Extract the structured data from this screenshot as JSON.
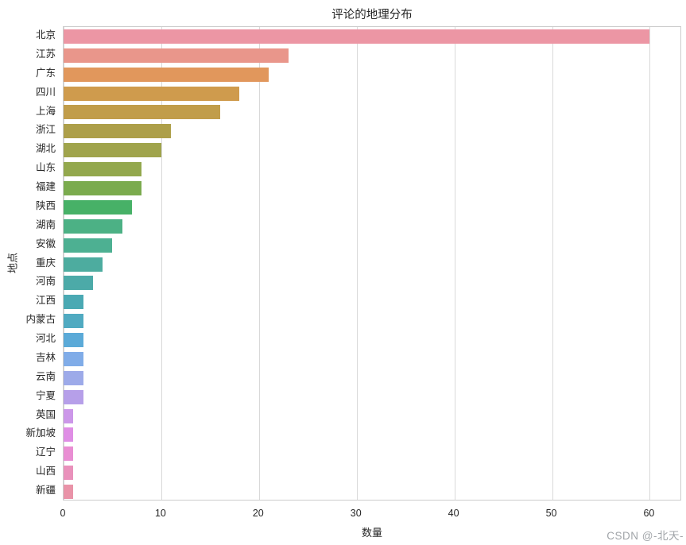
{
  "watermark": "CSDN @-北天-",
  "colors": {
    "background": "#ffffff",
    "grid": "#d9d9d9",
    "spine": "#cccccc",
    "text": "#262626",
    "watermark": "#a0a4a8"
  },
  "chart_data": {
    "type": "bar",
    "orientation": "horizontal",
    "title": "评论的地理分布",
    "xlabel": "数量",
    "ylabel": "地点",
    "xlim": [
      0,
      63.3
    ],
    "x_ticks": [
      0,
      10,
      20,
      30,
      40,
      50,
      60
    ],
    "grid": "vertical",
    "legend_position": "none",
    "categories": [
      "北京",
      "江苏",
      "广东",
      "四川",
      "上海",
      "浙江",
      "湖北",
      "山东",
      "福建",
      "陕西",
      "湖南",
      "安徽",
      "重庆",
      "河南",
      "江西",
      "内蒙古",
      "河北",
      "吉林",
      "云南",
      "宁夏",
      "英国",
      "新加坡",
      "辽宁",
      "山西",
      "新疆"
    ],
    "values": [
      60,
      23,
      21,
      18,
      16,
      11,
      10,
      8,
      8,
      7,
      6,
      5,
      4,
      3,
      2,
      2,
      2,
      2,
      2,
      2,
      1,
      1,
      1,
      1,
      1
    ],
    "bar_colors": [
      "#ec96a4",
      "#e9968b",
      "#e1975c",
      "#cf9b4d",
      "#c19d4a",
      "#ad9f49",
      "#a0a44c",
      "#93a84d",
      "#7bab4e",
      "#47b167",
      "#4cb185",
      "#4db092",
      "#4dac9f",
      "#4caaa8",
      "#4aa9b3",
      "#50aac1",
      "#5baad8",
      "#80ace8",
      "#9daae9",
      "#b69fe9",
      "#cc97e9",
      "#df8ee5",
      "#e98ed3",
      "#e991bb",
      "#e993a8"
    ]
  }
}
